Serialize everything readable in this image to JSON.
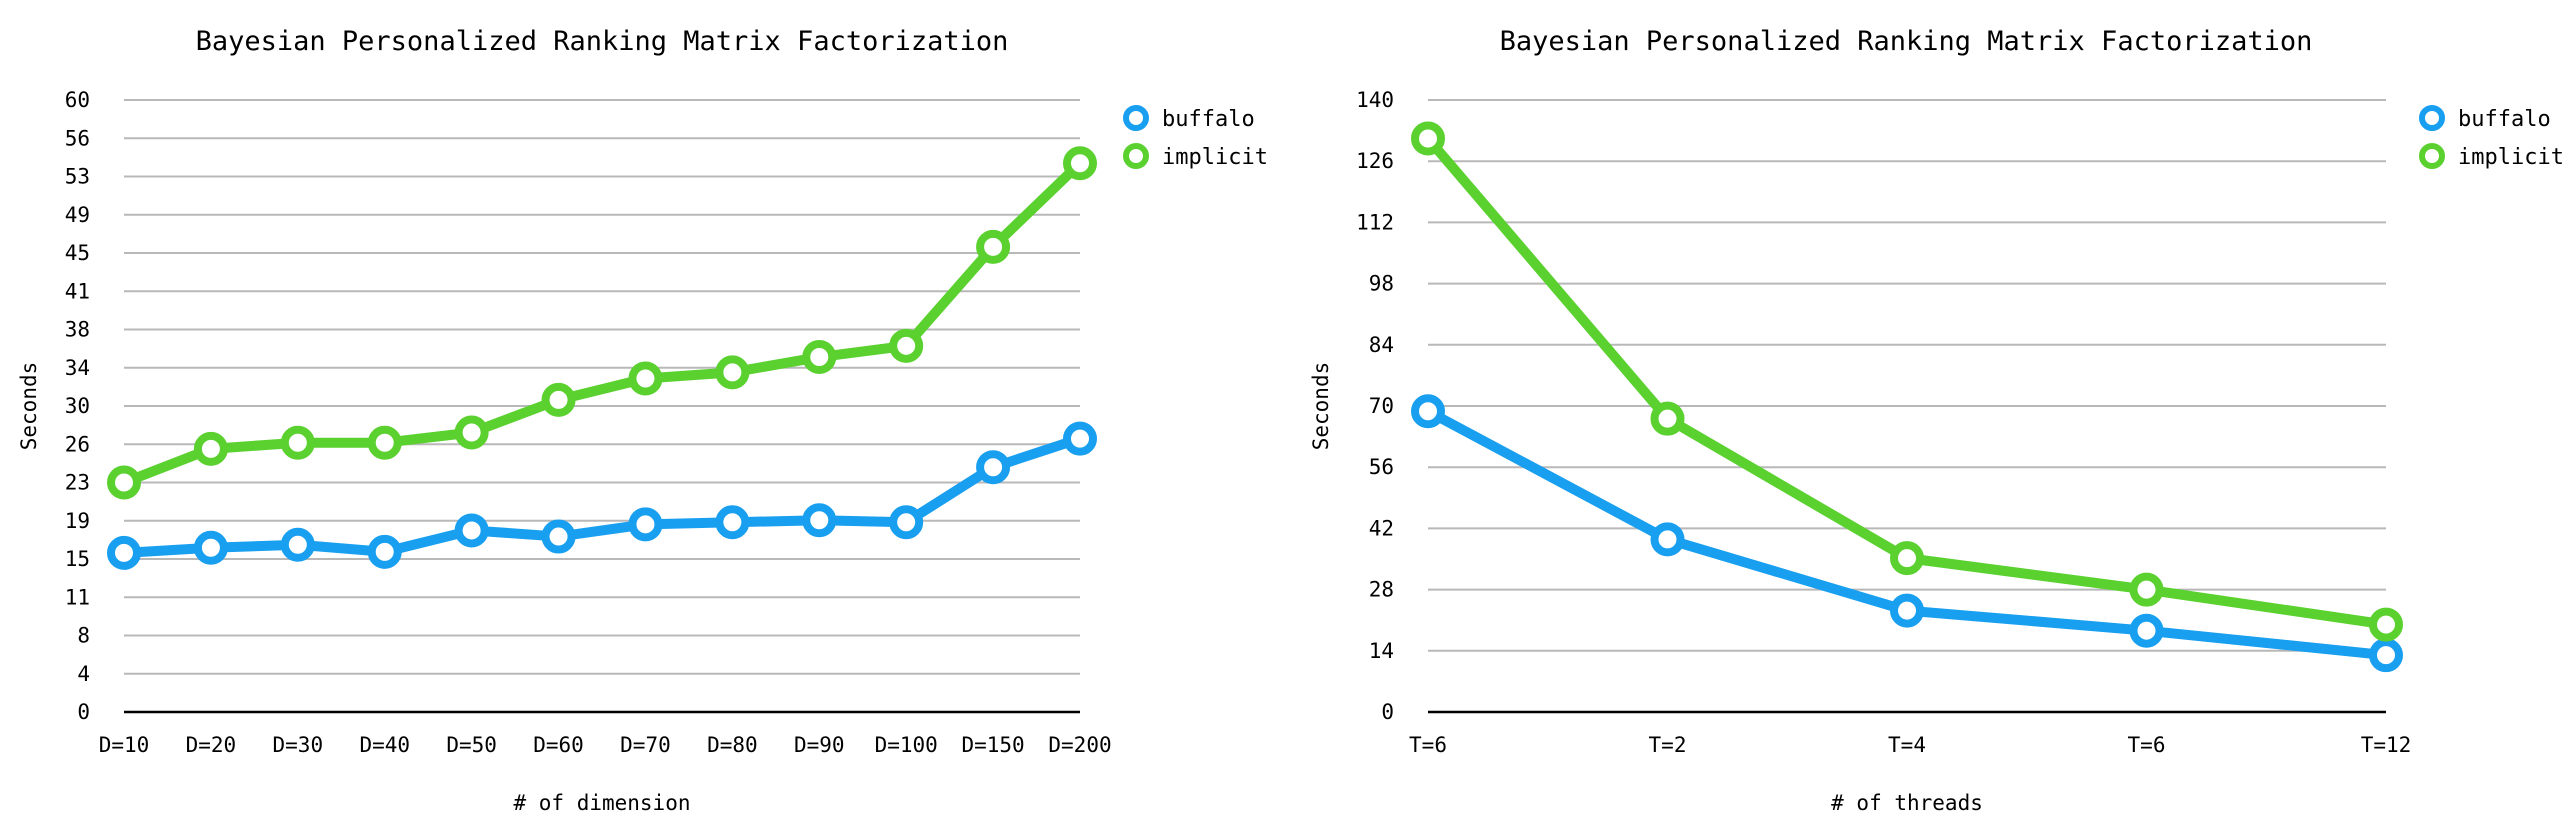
{
  "chart_data": [
    {
      "type": "line",
      "title": "Bayesian Personalized Ranking Matrix Factorization",
      "xlabel": "# of dimension",
      "ylabel": "Seconds",
      "categories": [
        "D=10",
        "D=20",
        "D=30",
        "D=40",
        "D=50",
        "D=60",
        "D=70",
        "D=80",
        "D=90",
        "D=100",
        "D=150",
        "D=200"
      ],
      "ylim": [
        0,
        60
      ],
      "yticks": [
        "0",
        "4",
        "8",
        "11",
        "15",
        "19",
        "23",
        "26",
        "30",
        "34",
        "38",
        "41",
        "45",
        "49",
        "53",
        "56",
        "60"
      ],
      "grid": true,
      "legend": "top-right",
      "series": [
        {
          "name": "buffalo",
          "color": "#189ff0",
          "values": [
            15.6,
            16.1,
            16.4,
            15.7,
            17.8,
            17.2,
            18.4,
            18.6,
            18.8,
            18.6,
            24.0,
            26.8
          ]
        },
        {
          "name": "implicit",
          "color": "#5ad12f",
          "values": [
            22.5,
            25.8,
            26.4,
            26.4,
            27.4,
            30.6,
            32.7,
            33.3,
            34.8,
            35.9,
            45.6,
            53.8
          ]
        }
      ]
    },
    {
      "type": "line",
      "title": "Bayesian Personalized Ranking Matrix Factorization",
      "xlabel": "# of threads",
      "ylabel": "Seconds",
      "categories": [
        "T=6",
        "T=2",
        "T=4",
        "T=6",
        "T=12"
      ],
      "ylim": [
        0,
        140
      ],
      "yticks": [
        "0",
        "14",
        "28",
        "42",
        "56",
        "70",
        "84",
        "98",
        "112",
        "126",
        "140"
      ],
      "grid": true,
      "legend": "top-right",
      "series": [
        {
          "name": "buffalo",
          "color": "#189ff0",
          "values": [
            68.8,
            39.5,
            23.2,
            18.6,
            13.0
          ]
        },
        {
          "name": "implicit",
          "color": "#5ad12f",
          "values": [
            131.2,
            67.1,
            35.2,
            28.0,
            20.0
          ]
        }
      ]
    }
  ]
}
